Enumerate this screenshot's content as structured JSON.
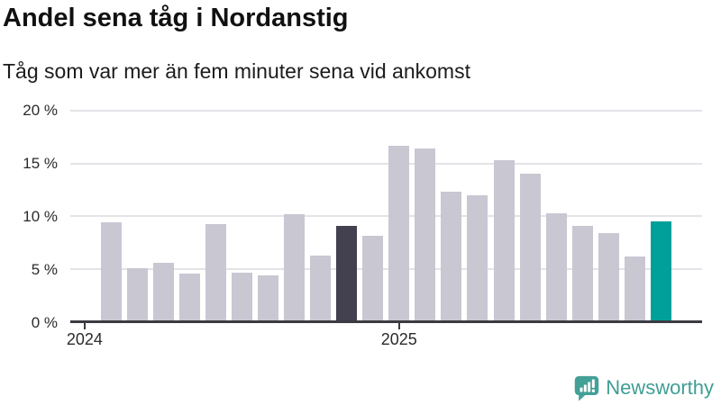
{
  "header": {
    "title": "Andel sena tåg i Nordanstig",
    "subtitle": "Tåg som var mer än fem minuter sena vid ankomst"
  },
  "chart_data": {
    "type": "bar",
    "title": "Andel sena tåg i Nordanstig",
    "subtitle": "Tåg som var mer än fem minuter sena vid ankomst",
    "unit": "%",
    "categories": [
      "2024-02",
      "2024-03",
      "2024-04",
      "2024-05",
      "2024-06",
      "2024-07",
      "2024-08",
      "2024-09",
      "2024-10",
      "2024-11",
      "2024-12",
      "2025-01",
      "2025-02",
      "2025-03",
      "2025-04",
      "2025-05",
      "2025-06",
      "2025-07",
      "2025-08",
      "2025-09",
      "2025-10",
      "2025-11"
    ],
    "values": [
      9.4,
      5.1,
      5.6,
      4.6,
      9.3,
      4.7,
      4.4,
      10.2,
      6.3,
      9.1,
      8.2,
      16.7,
      16.4,
      12.3,
      12.0,
      15.3,
      14.0,
      10.3,
      9.1,
      8.4,
      6.2,
      9.5
    ],
    "ylim": [
      0,
      20
    ],
    "yticks": [
      {
        "value": 0,
        "label": "0 %"
      },
      {
        "value": 5,
        "label": "5 %"
      },
      {
        "value": 10,
        "label": "10 %"
      },
      {
        "value": 15,
        "label": "15 %"
      },
      {
        "value": 20,
        "label": "20 %"
      }
    ],
    "x_ticks": [
      {
        "label": "2024",
        "month_offset": -1
      },
      {
        "label": "2025",
        "month_offset": 11
      }
    ],
    "grid": true,
    "legend": "none",
    "highlights": {
      "dark_index": 9,
      "accent_index": 21
    },
    "colors": {
      "bar_default": "#c9c7d2",
      "bar_highlight_dark": "#434050",
      "bar_highlight_accent": "#00a09a",
      "axis": "#3b3b42",
      "gridline": "#e3e3e8",
      "label": "#2b2b2b"
    }
  },
  "footer": {
    "brand": "Newsworthy",
    "brand_color": "#3f9e94",
    "logo_color": "#43a096"
  }
}
